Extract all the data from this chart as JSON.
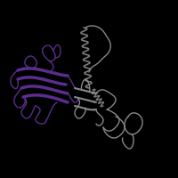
{
  "background_color": "#000000",
  "purple_color": "#5B2D8E",
  "gray_color": "#888888",
  "fig_width": 2.0,
  "fig_height": 2.0,
  "dpi": 100
}
